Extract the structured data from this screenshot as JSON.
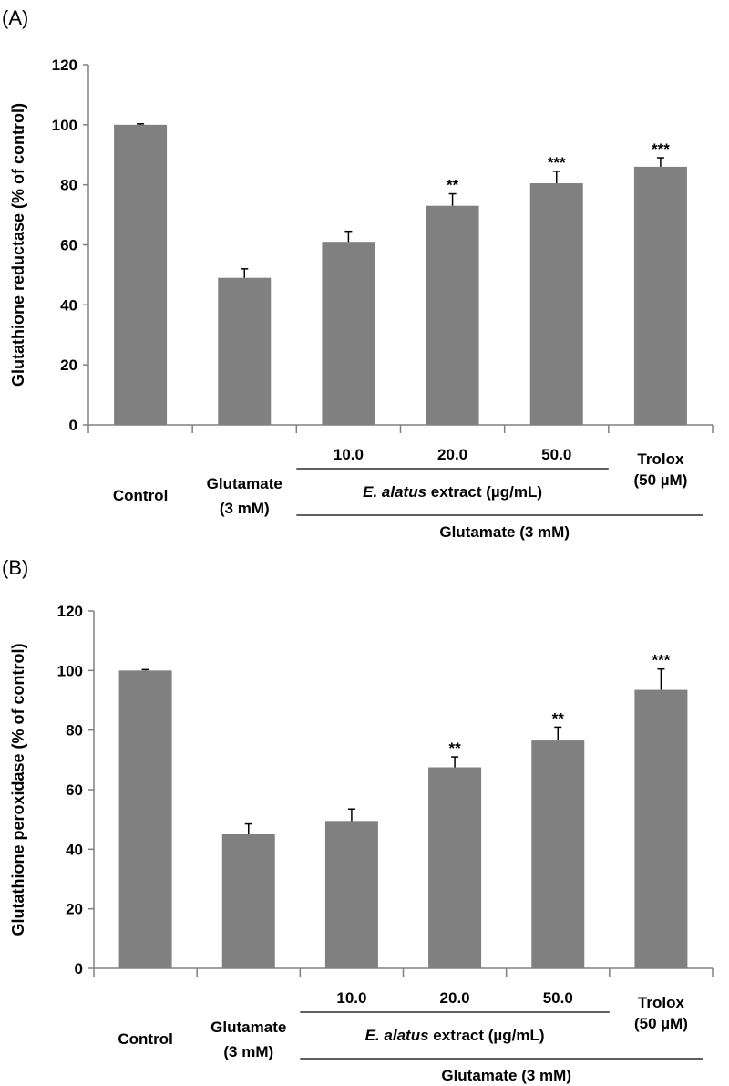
{
  "colors": {
    "bar": "#808080",
    "axis": "#808080",
    "text": "#000000",
    "error": "#000000"
  },
  "chart_data": [
    {
      "type": "bar",
      "panel_label": "(A)",
      "ylabel": "Glutathione reductase (% of control)",
      "ylim": [
        0,
        120
      ],
      "yticks": [
        "0",
        "20",
        "40",
        "60",
        "80",
        "100",
        "120"
      ],
      "categories": [
        "Control",
        "Glutamate (3 mM)",
        "10.0",
        "20.0",
        "50.0",
        "Trolox (50 µM)"
      ],
      "values": [
        100,
        49,
        61,
        73,
        80.5,
        86
      ],
      "errors": [
        0.3,
        3,
        3.5,
        4,
        4,
        3
      ],
      "significance": [
        "",
        "",
        "",
        "**",
        "***",
        "***"
      ],
      "labels": {
        "control": "Control",
        "glutamate_line1": "Glutamate",
        "glutamate_line2": "(3 mM)",
        "conc_10": "10.0",
        "conc_20": "20.0",
        "conc_50": "50.0",
        "trolox_line1": "Trolox",
        "trolox_line2": "(50 µM)",
        "extract_italic": "E. alatus",
        "extract_rest": " extract (µg/mL)",
        "group": "Glutamate (3 mM)"
      }
    },
    {
      "type": "bar",
      "panel_label": "(B)",
      "ylabel": "Glutathione peroxidase (% of control)",
      "ylim": [
        0,
        120
      ],
      "yticks": [
        "0",
        "20",
        "40",
        "60",
        "80",
        "100",
        "120"
      ],
      "categories": [
        "Control",
        "Glutamate (3 mM)",
        "10.0",
        "20.0",
        "50.0",
        "Trolox (50 µM)"
      ],
      "values": [
        100,
        45,
        49.5,
        67.5,
        76.5,
        93.5
      ],
      "errors": [
        0.3,
        3.5,
        4,
        3.5,
        4.5,
        7
      ],
      "significance": [
        "",
        "",
        "",
        "**",
        "**",
        "***"
      ],
      "labels": {
        "control": "Control",
        "glutamate_line1": "Glutamate",
        "glutamate_line2": "(3 mM)",
        "conc_10": "10.0",
        "conc_20": "20.0",
        "conc_50": "50.0",
        "trolox_line1": "Trolox",
        "trolox_line2": "(50 µM)",
        "extract_italic": "E. alatus",
        "extract_rest": " extract (µg/mL)",
        "group": "Glutamate (3 mM)"
      }
    }
  ]
}
